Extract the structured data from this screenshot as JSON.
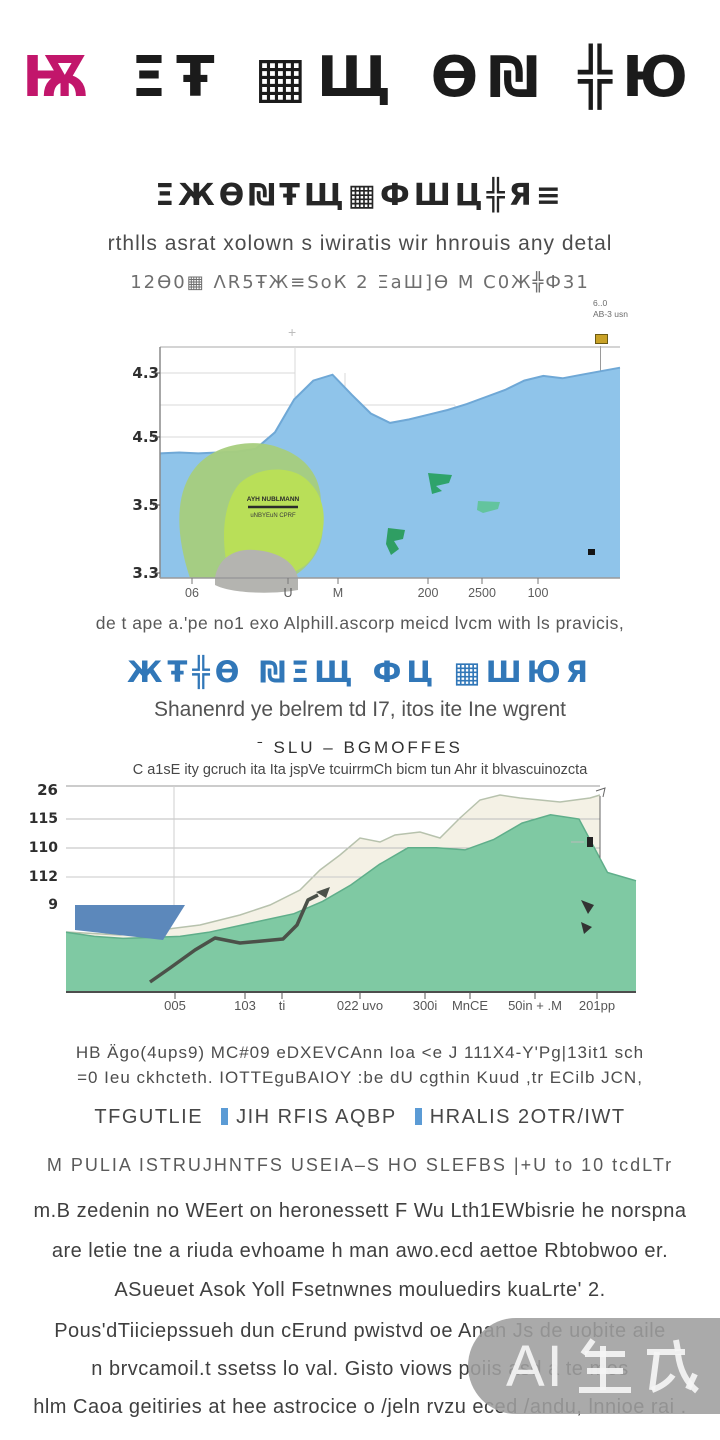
{
  "header": {
    "title_first": "Ѭ",
    "title_rest": " ΞŦ ▦Щ Ѳ₪ ╬Ю",
    "heading": "ΞЖѲ₪ŦЩ▦ФШЦ╬Я≡",
    "subline1": "rthlls asrat xolown s iwiratis wir hnrouis any detal",
    "subline2": "12Ѳ0▦ ΛR5ŦЖ≡ЅoК 2 ΞаШ]Ѳ М С0Ж╬Ф31"
  },
  "chart1": {
    "legend_line1": "6..0",
    "legend_line2": "AB-3 usn",
    "y_ticks": [
      "4.3",
      "4.5",
      "3.5",
      "3.3"
    ],
    "x_ticks": [
      "06",
      "U",
      "M",
      "200",
      "2500",
      "100"
    ],
    "blob_text_line1": "AYH NUBLMANN",
    "blob_text_line2": "uNBYEuN CPRF",
    "caption": "de t ape a.'pe no1 exo Alphill.ascorp meicd lvcm with ls pravicis,"
  },
  "section2": {
    "heading": "ЖŦ╬Ѳ ₪ΞЩ ФЦ ▦ШЮЯ",
    "subheading": "Shanenrd ye belrem td I7, itos ite Ine wgrent"
  },
  "chart2": {
    "title": "ˉ SLU –  BGMOFFES",
    "subtitle": "C a1sE ity gcruch ita Ita jspVe tcuirrmCh bicm tun Ahr it blvascuinozcta",
    "y_ticks": [
      "26",
      "115",
      "110",
      "112",
      "9"
    ],
    "x_ticks": [
      "005",
      "103",
      "ti",
      "022 uvo",
      "300i",
      "MnCE",
      "50in + .M",
      "201pp"
    ]
  },
  "below": {
    "para_line1": "HB Ägo(4ups9) MC#09 eDXEVCAnn Ioa <e J 111X4-Y'Pg|13it1 sch",
    "para_line2": "=0 Ieu ckhcteth. IOTTEguBAIOY :be dU cgthin Kuud ,tr ECilb JCN,",
    "figure_part1": "TFGUTLIE",
    "figure_part2": "JIH RFIS AQBP",
    "figure_part3": "HRALIS 2OTR/IWT",
    "marker_color": "#5b9bd5",
    "smallcaps": "M PULIA ISTRUJHNTFS USEIA–S HO SLEFBS |+U to 10 tcdLTr"
  },
  "paragraphs": {
    "lines": [
      "m.B zedenin no WEert on heronessett F Wu Lth1EWbisrie he norspna",
      "are letie tne a riuda evhoame h man awo.ecd aettoe Rbtobwoo er.",
      "ASueuet Asok Yoll Fsetnwnes mouluedirs kuaLrte' 2.",
      "Pous'dTiiciepssueh dun cErund pwistvd oe Anan Js de uobite aile",
      "n brvcamoil.t ssetss lo val. Gisto viows poiis asd a te mes",
      "hlm Caoa geitiries at hee astrocice o /jeln rvzu eced /andu, lnnioe rai ."
    ]
  },
  "watermark": {
    "label": "AI生成",
    "display": "AI"
  },
  "chart_data": [
    {
      "type": "area",
      "title": "",
      "legend": [
        "6..0 AB-3 usn"
      ],
      "y_tick_labels_as_shown": [
        "4.3",
        "4.5",
        "3.5",
        "3.3"
      ],
      "x_tick_labels_as_shown": [
        "06",
        "U",
        "M",
        "200",
        "2500",
        "100"
      ],
      "ylim_note": "tick labels are garbled; values_pct are percent of plot height",
      "series": [
        {
          "name": "blue-area",
          "color": "#8fc4ea",
          "values_pct": [
            53,
            53.4,
            53,
            53.4,
            53.8,
            55,
            62,
            76,
            84,
            86.5,
            78,
            70,
            66,
            67.5,
            69.5,
            71.5,
            74,
            77,
            80,
            84,
            86,
            85,
            86.5,
            88,
            89.5
          ]
        }
      ],
      "overlays": [
        "green-blob AYH NUBLMANN uNBYEuN CPRF",
        "gray-blob",
        "3 teal markers",
        "black square marker"
      ]
    },
    {
      "type": "area",
      "title": "ˉ SLU –  BGMOFFES",
      "y_tick_labels_as_shown": [
        "26",
        "115",
        "110",
        "112",
        "9"
      ],
      "x_tick_labels_as_shown": [
        "005",
        "103",
        "ti",
        "022 uvo",
        "300i",
        "MnCE",
        "50in + .M",
        "201pp"
      ],
      "ylim_note": "tick labels are garbled; values_pct are percent of plot height",
      "series": [
        {
          "name": "green-area",
          "color": "#7fc9a3",
          "values_pct": [
            29,
            27,
            26,
            26.5,
            27,
            29,
            32,
            35,
            38,
            44,
            52,
            62,
            70,
            70,
            69,
            74,
            82,
            86,
            84,
            58,
            54
          ]
        }
      ],
      "overlays": [
        "cream band with thin upper line",
        "blue quadrilateral lower-left",
        "dark rising step line",
        "right-side vertical marker line"
      ]
    }
  ]
}
